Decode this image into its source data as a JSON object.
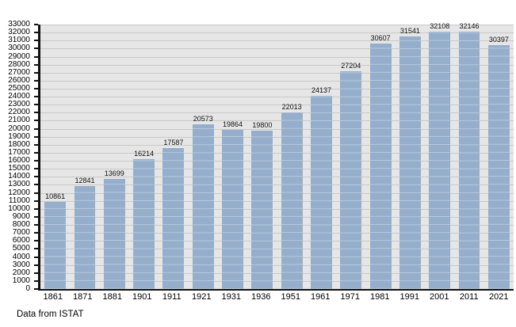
{
  "chart_data": {
    "type": "bar",
    "title": "",
    "xlabel": "",
    "ylabel": "",
    "categories": [
      "1861",
      "1871",
      "1881",
      "1901",
      "1911",
      "1921",
      "1931",
      "1936",
      "1951",
      "1961",
      "1971",
      "1981",
      "1991",
      "2001",
      "2011",
      "2021"
    ],
    "values": [
      10861,
      12841,
      13699,
      16214,
      17587,
      20573,
      19864,
      19800,
      22013,
      24137,
      27204,
      30607,
      31541,
      32108,
      32146,
      30397
    ],
    "value_labels": [
      "10861",
      "12841",
      "13699",
      "16214",
      "17587",
      "20573",
      "19864",
      "19800",
      "22013",
      "24137",
      "27204",
      "30607",
      "31541",
      "32108",
      "32146",
      "30397"
    ],
    "ylim": [
      0,
      33000
    ],
    "ytick_step": 1000,
    "grid": true,
    "legend": "none",
    "colors": {
      "bar": "#94aecb",
      "bar_gridline_overlay": "rgba(255,255,255,0.35)",
      "plot_background": "#e6e6e6",
      "gridline": "#c9c9c9",
      "axis": "#111111",
      "text": "#000000"
    }
  },
  "footer": {
    "text": "Data from ISTAT"
  }
}
